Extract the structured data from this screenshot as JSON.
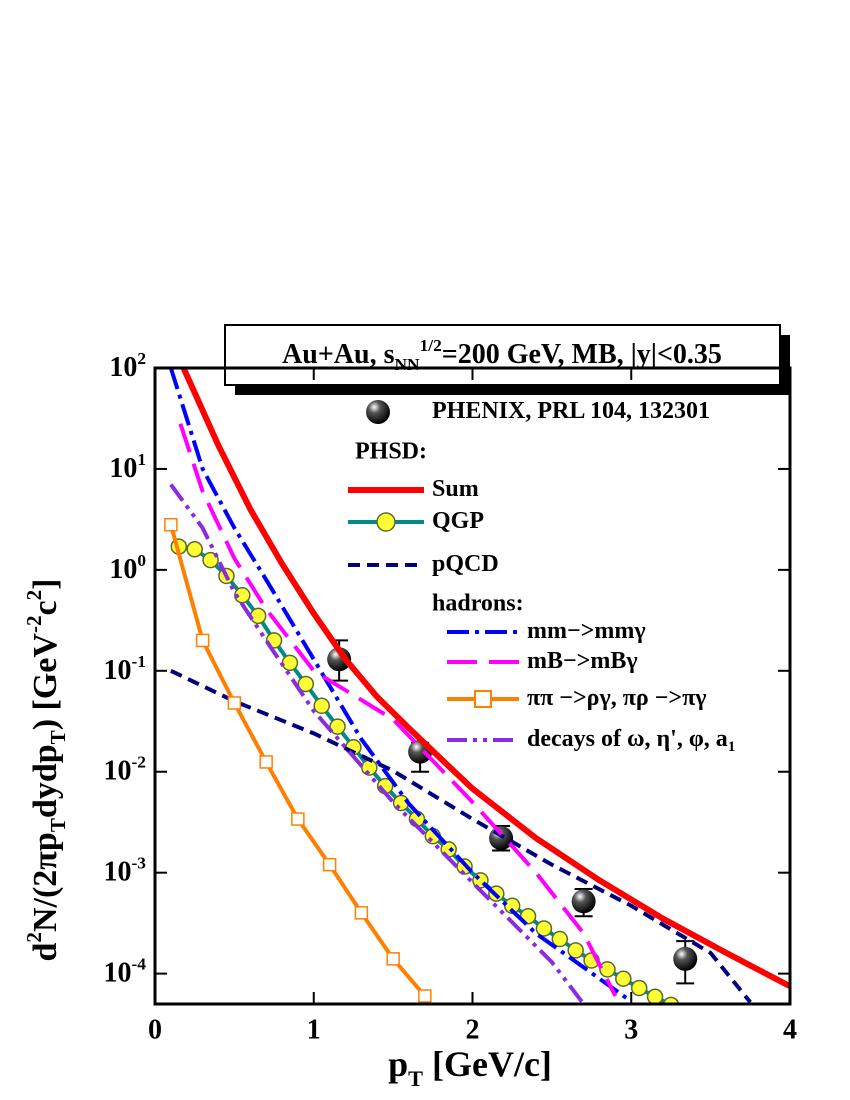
{
  "chart_data": {
    "type": "line",
    "title": "Au+Au, s_{NN}^{1/2}=200 GeV, MB, |y|<0.35",
    "x_label": "p_{T} [GeV/c]",
    "y_label": "d^{2}N/(2πp_{T}dydp_{T})  [GeV^{-2}c^{2}]",
    "annotations": [
      "PHSD:",
      "hadrons:"
    ],
    "xlim": [
      0,
      4
    ],
    "xticks": [
      0,
      1,
      2,
      3,
      4
    ],
    "ylim": [
      5e-05,
      100
    ],
    "yscale": "log",
    "yticks": [
      {
        "value": 100,
        "label": "10^{2}"
      },
      {
        "value": 10,
        "label": "10^{1}"
      },
      {
        "value": 1,
        "label": "10^{0}"
      },
      {
        "value": 0.1,
        "label": "10^{-1}"
      },
      {
        "value": 0.01,
        "label": "10^{-2}"
      },
      {
        "value": 0.001,
        "label": "10^{-3}"
      },
      {
        "value": 0.0001,
        "label": "10^{-4}"
      }
    ],
    "grid": false,
    "series": [
      {
        "name": "PHENIX, PRL 104, 132301",
        "color": "#000000",
        "marker": "sphere",
        "line_style": "none",
        "x": [
          1.16,
          1.67,
          2.18,
          2.7,
          3.34
        ],
        "values": [
          0.13,
          0.0158,
          0.0022,
          0.00052,
          0.00014
        ],
        "error_low": [
          0.05,
          0.0058,
          0.00054,
          0.00015,
          6e-05
        ],
        "error_high": [
          0.07,
          0.0036,
          0.0007,
          0.00017,
          7e-05
        ]
      },
      {
        "name": "Sum",
        "color": "#ff0000",
        "line_style": "solid",
        "width": 6,
        "x": [
          0.18,
          0.2,
          0.4,
          0.6,
          0.8,
          1.0,
          1.2,
          1.4,
          1.6,
          1.8,
          2.0,
          2.4,
          2.8,
          3.2,
          3.6,
          4.0
        ],
        "values": [
          100,
          85,
          17,
          4,
          1.15,
          0.37,
          0.13,
          0.055,
          0.027,
          0.0135,
          0.0068,
          0.0022,
          0.00084,
          0.00035,
          0.00016,
          7.5e-05
        ]
      },
      {
        "name": "QGP",
        "color": "#008b8b",
        "marker": "circle",
        "marker_fill": "#ffff33",
        "line_style": "solid",
        "width": 4,
        "x": [
          0.15,
          0.25,
          0.35,
          0.45,
          0.55,
          0.65,
          0.75,
          0.85,
          0.95,
          1.05,
          1.15,
          1.25,
          1.35,
          1.45,
          1.55,
          1.65,
          1.75,
          1.85,
          1.95,
          2.05,
          2.15,
          2.25,
          2.35,
          2.45,
          2.55,
          2.65,
          2.75,
          2.85,
          2.95,
          3.05,
          3.15,
          3.25
        ],
        "values": [
          1.7,
          1.6,
          1.25,
          0.87,
          0.56,
          0.35,
          0.2,
          0.12,
          0.074,
          0.045,
          0.028,
          0.0175,
          0.011,
          0.0072,
          0.0049,
          0.0034,
          0.0023,
          0.0017,
          0.00115,
          0.00084,
          0.00062,
          0.00047,
          0.00037,
          0.00028,
          0.00022,
          0.00017,
          0.000135,
          0.00011,
          8.9e-05,
          7.2e-05,
          5.9e-05,
          4.9e-05
        ]
      },
      {
        "name": "pQCD",
        "color": "#000080",
        "line_style": "dashed",
        "width": 4,
        "x": [
          0.1,
          0.5,
          1.0,
          1.5,
          2.0,
          2.5,
          3.0,
          3.5,
          3.75
        ],
        "values": [
          0.1,
          0.05,
          0.024,
          0.0102,
          0.0034,
          0.0012,
          0.00047,
          0.00016,
          5.2e-05
        ]
      },
      {
        "name": "mm−>mmγ",
        "color": "#0000ff",
        "line_style": "dashdot",
        "width": 4,
        "x": [
          0.1,
          0.3,
          0.5,
          0.7,
          1.0,
          1.3,
          1.6,
          2.0,
          2.4,
          2.8,
          3.0
        ],
        "values": [
          100,
          10,
          2.6,
          0.8,
          0.13,
          0.021,
          0.0048,
          0.001,
          0.00025,
          8.9e-05,
          5.3e-05
        ]
      },
      {
        "name": "mB−>mBγ",
        "color": "#ff00ff",
        "line_style": "longdash",
        "width": 4,
        "x": [
          0.16,
          0.3,
          0.5,
          0.7,
          1.0,
          1.5,
          2.0,
          2.4,
          2.7,
          2.9
        ],
        "values": [
          28,
          6,
          1.3,
          0.41,
          0.1,
          0.033,
          0.005,
          0.001,
          0.00025,
          6e-05
        ]
      },
      {
        "name": "ππ −>ργ, πρ −>πγ",
        "color": "#ff8000",
        "marker": "square",
        "marker_fill": "#ffffff",
        "line_style": "solid",
        "width": 4,
        "x": [
          0.1,
          0.3,
          0.5,
          0.7,
          0.9,
          1.1,
          1.3,
          1.5,
          1.7
        ],
        "values": [
          2.8,
          0.2,
          0.048,
          0.0125,
          0.0034,
          0.0012,
          0.0004,
          0.00014,
          6e-05
        ]
      },
      {
        "name": "decays of ω, η', φ, a_{1}",
        "color": "#8a2be2",
        "line_style": "dashdotdot",
        "width": 4,
        "x": [
          0.1,
          0.3,
          0.5,
          0.7,
          1.0,
          1.5,
          2.0,
          2.5,
          2.7
        ],
        "values": [
          7,
          2.6,
          0.6,
          0.2,
          0.04,
          0.005,
          0.0008,
          0.00013,
          5e-05
        ]
      }
    ]
  }
}
